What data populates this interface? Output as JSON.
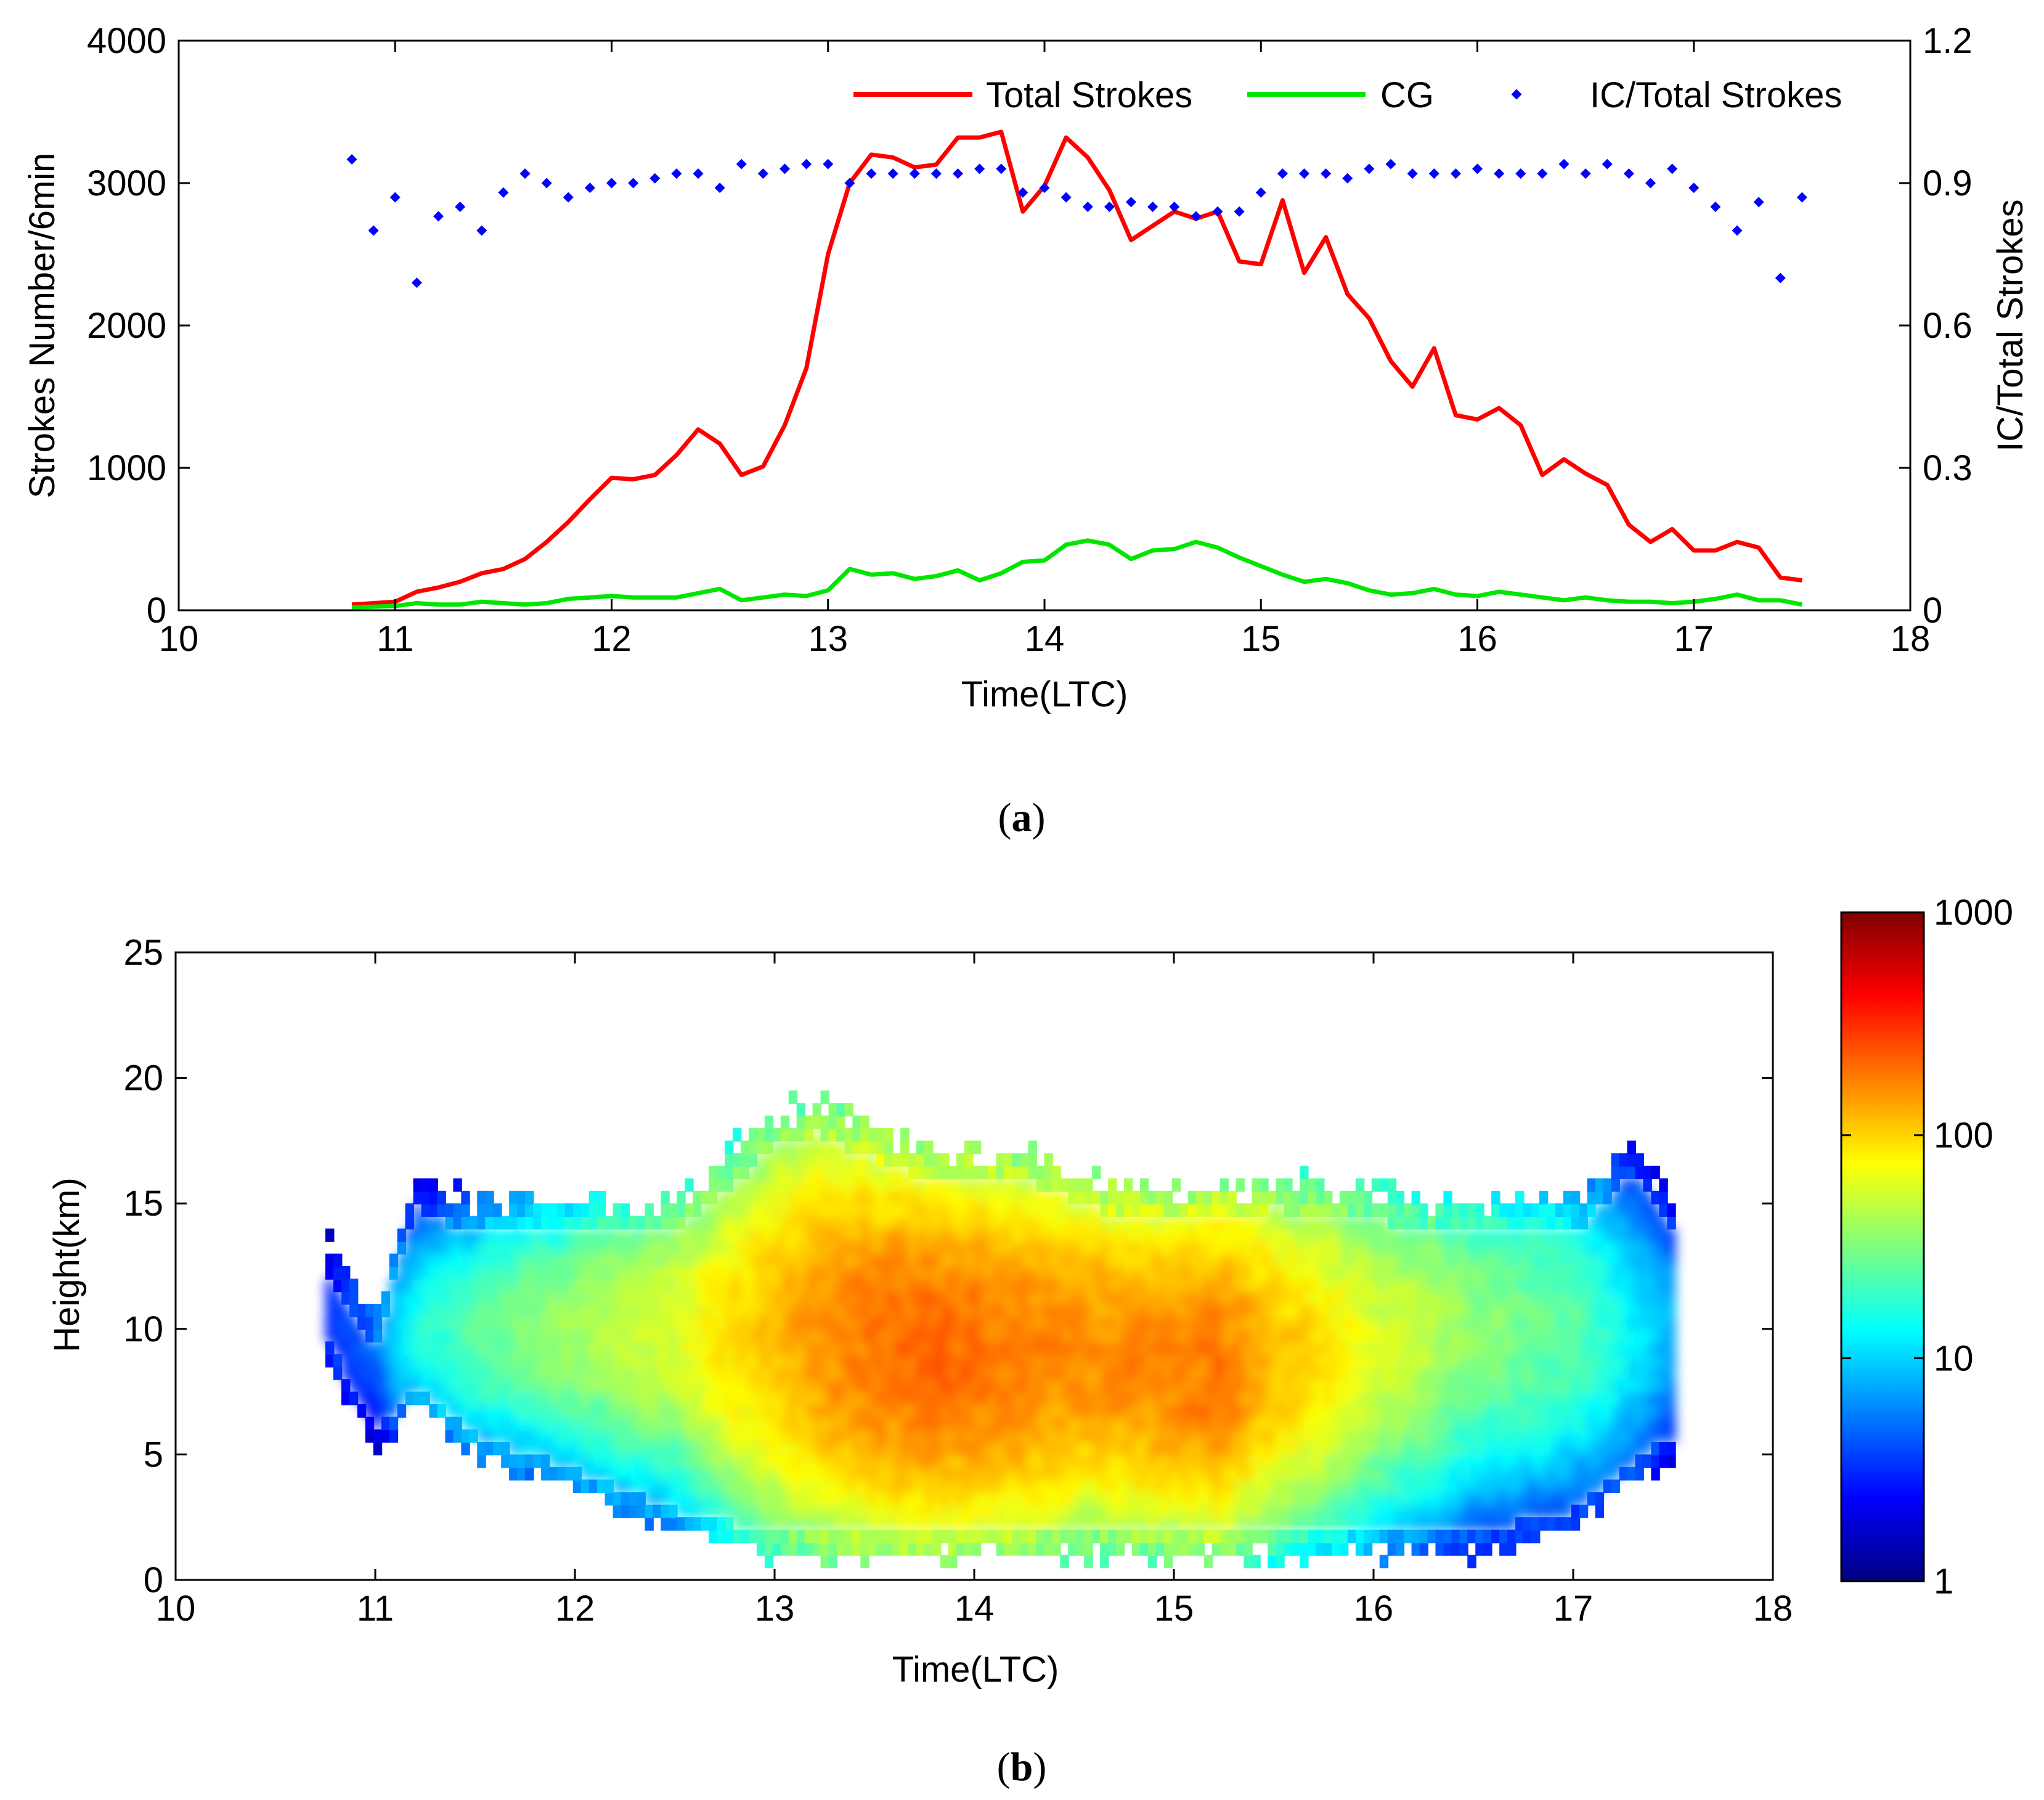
{
  "colors": {
    "total": "#ff0000",
    "cg": "#00e600",
    "ratio": "#0000ff",
    "colormap": [
      "#00007f",
      "#0000ff",
      "#007fff",
      "#00ffff",
      "#7fff7f",
      "#ffff00",
      "#ff7f00",
      "#ff0000",
      "#7f0000"
    ]
  },
  "chart_data": [
    {
      "type": "line",
      "panel_label": "a",
      "title": "",
      "xlabel": "Time(LTC)",
      "ylabel": "Strokes Number/6min",
      "y2label": "IC/Total Strokes",
      "xlim": [
        10,
        18
      ],
      "ylim": [
        0,
        4000
      ],
      "y2lim": [
        0,
        1.2
      ],
      "xticks": [
        "10",
        "11",
        "12",
        "13",
        "14",
        "15",
        "16",
        "17",
        "18"
      ],
      "yticks": [
        "0",
        "1000",
        "2000",
        "3000",
        "4000"
      ],
      "y2ticks": [
        "0",
        "0.3",
        "0.6",
        "0.9",
        "1.2"
      ],
      "legend": [
        "Total Strokes",
        "CG",
        "IC/Total Strokes"
      ],
      "legend_position": "top-right",
      "x": [
        10.8,
        10.9,
        11.0,
        11.1,
        11.2,
        11.3,
        11.4,
        11.5,
        11.6,
        11.7,
        11.8,
        11.9,
        12.0,
        12.1,
        12.2,
        12.3,
        12.4,
        12.5,
        12.6,
        12.7,
        12.8,
        12.9,
        13.0,
        13.1,
        13.2,
        13.3,
        13.4,
        13.5,
        13.6,
        13.7,
        13.8,
        13.9,
        14.0,
        14.1,
        14.2,
        14.3,
        14.4,
        14.5,
        14.6,
        14.7,
        14.8,
        14.9,
        15.0,
        15.1,
        15.2,
        15.3,
        15.4,
        15.5,
        15.6,
        15.7,
        15.8,
        15.9,
        16.0,
        16.1,
        16.2,
        16.3,
        16.4,
        16.5,
        16.6,
        16.7,
        16.8,
        16.9,
        17.0,
        17.1,
        17.2,
        17.3,
        17.4,
        17.5
      ],
      "series": [
        {
          "name": "Total Strokes",
          "axis": "left",
          "style": "line",
          "values": [
            40,
            50,
            60,
            130,
            160,
            200,
            260,
            290,
            360,
            480,
            620,
            780,
            930,
            920,
            950,
            1090,
            1270,
            1170,
            950,
            1010,
            1300,
            1700,
            2500,
            3000,
            3200,
            3180,
            3110,
            3130,
            3320,
            3320,
            3360,
            2800,
            2980,
            3320,
            3180,
            2950,
            2600,
            2700,
            2800,
            2750,
            2800,
            2450,
            2430,
            2880,
            2370,
            2620,
            2220,
            2050,
            1750,
            1570,
            1840,
            1370,
            1340,
            1420,
            1300,
            950,
            1060,
            960,
            880,
            600,
            480,
            570,
            420,
            420,
            480,
            440,
            230,
            210
          ]
        },
        {
          "name": "CG",
          "axis": "left",
          "style": "line",
          "values": [
            20,
            25,
            30,
            50,
            40,
            40,
            60,
            50,
            40,
            50,
            80,
            90,
            100,
            90,
            90,
            90,
            120,
            150,
            70,
            90,
            110,
            100,
            140,
            290,
            250,
            260,
            220,
            240,
            280,
            210,
            260,
            340,
            350,
            460,
            490,
            460,
            360,
            420,
            430,
            480,
            440,
            370,
            310,
            250,
            200,
            220,
            190,
            140,
            110,
            120,
            150,
            110,
            100,
            130,
            110,
            90,
            70,
            90,
            70,
            60,
            60,
            50,
            60,
            80,
            110,
            70,
            70,
            40
          ]
        },
        {
          "name": "IC/Total Strokes",
          "axis": "right",
          "style": "dot",
          "values": [
            0.95,
            0.8,
            0.87,
            0.69,
            0.83,
            0.85,
            0.8,
            0.88,
            0.92,
            0.9,
            0.87,
            0.89,
            0.9,
            0.9,
            0.91,
            0.92,
            0.92,
            0.89,
            0.94,
            0.92,
            0.93,
            0.94,
            0.94,
            0.9,
            0.92,
            0.92,
            0.92,
            0.92,
            0.92,
            0.93,
            0.93,
            0.88,
            0.89,
            0.87,
            0.85,
            0.85,
            0.86,
            0.85,
            0.85,
            0.83,
            0.84,
            0.84,
            0.88,
            0.92,
            0.92,
            0.92,
            0.91,
            0.93,
            0.94,
            0.92,
            0.92,
            0.92,
            0.93,
            0.92,
            0.92,
            0.92,
            0.94,
            0.92,
            0.94,
            0.92,
            0.9,
            0.93,
            0.89,
            0.85,
            0.8,
            0.86,
            0.7,
            0.87
          ]
        }
      ]
    },
    {
      "type": "heatmap",
      "panel_label": "b",
      "title": "",
      "xlabel": "Time(LTC)",
      "ylabel": "Height(km)",
      "xlim": [
        10,
        18
      ],
      "ylim": [
        0,
        25
      ],
      "xticks": [
        "10",
        "11",
        "12",
        "13",
        "14",
        "15",
        "16",
        "17",
        "18"
      ],
      "yticks": [
        "0",
        "5",
        "10",
        "15",
        "20",
        "25"
      ],
      "colorbar": {
        "scale": "log",
        "range": [
          1,
          1000
        ],
        "ticks": [
          "1",
          "10",
          "100",
          "1000"
        ]
      },
      "description_points": {
        "time": [
          10.75,
          11.0,
          11.2,
          11.5,
          12.0,
          12.5,
          13.0,
          13.2,
          13.5,
          13.8,
          14.0,
          14.3,
          14.6,
          15.0,
          15.2,
          15.5,
          16.0,
          16.5,
          17.0,
          17.3,
          17.5
        ],
        "top_km": [
          13.5,
          10.5,
          16.0,
          15.0,
          15.0,
          15.0,
          18.5,
          19.0,
          18.0,
          17.0,
          17.0,
          17.0,
          16.0,
          15.5,
          15.5,
          16.0,
          15.5,
          15.0,
          15.0,
          17.5,
          15.0
        ],
        "bottom_km": [
          9.0,
          5.0,
          7.0,
          5.0,
          3.5,
          2.0,
          1.0,
          1.0,
          1.0,
          1.0,
          1.0,
          1.0,
          1.0,
          1.0,
          1.0,
          1.0,
          1.0,
          1.0,
          2.0,
          4.0,
          5.0
        ],
        "peak_count": [
          3,
          5,
          15,
          25,
          40,
          60,
          120,
          150,
          200,
          220,
          200,
          180,
          160,
          180,
          200,
          120,
          60,
          35,
          25,
          12,
          8
        ],
        "peak_height_km": [
          10,
          10,
          10,
          10,
          10,
          10,
          10,
          10,
          9.5,
          9.0,
          9.0,
          9.0,
          9.0,
          8.5,
          8.5,
          9.0,
          9.5,
          10,
          10,
          10,
          10
        ]
      }
    }
  ]
}
